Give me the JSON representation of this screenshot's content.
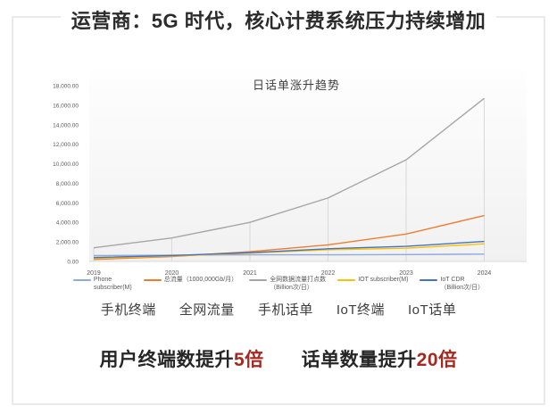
{
  "slide_title": "运营商：5G 时代，核心计费系统压力持续增加",
  "chart_data": {
    "type": "line",
    "title": "日话单涨升趋势",
    "x": [
      "2019",
      "2020",
      "2021",
      "2022",
      "2023",
      "2024"
    ],
    "y_axis": {
      "min": 0,
      "max": 18000,
      "step": 2000,
      "tick_format": "#,##0.00"
    },
    "grid": false,
    "legend_position": "bottom",
    "drop_lines": true,
    "series": [
      {
        "name": "Phone subscriber(M)",
        "legend_lines": [
          "Phone",
          "subscriber(M)"
        ],
        "color": "#8FAADC",
        "values": [
          600,
          640,
          680,
          680,
          700,
          750
        ]
      },
      {
        "name": "总流量（1000,000Gb/月）",
        "legend_lines": [
          "总流量（1000,000Gb/月）"
        ],
        "color": "#ED7D31",
        "values": [
          200,
          500,
          1000,
          1700,
          2800,
          4700
        ]
      },
      {
        "name": "全网数据流量打点数（Billion次/日）",
        "legend_lines": [
          "全网数据流量打点数",
          "（Billion次/日）"
        ],
        "color": "#A6A6A6",
        "values": [
          1400,
          2400,
          4000,
          6500,
          10400,
          16700
        ],
        "drop_lines": true
      },
      {
        "name": "IOT subscriber(M)",
        "legend_lines": [
          "IOT subscriber(M)"
        ],
        "color": "#FFC000",
        "values": [
          300,
          550,
          850,
          1200,
          1350,
          1800
        ]
      },
      {
        "name": "IoT CDR（Billion次/日）",
        "legend_lines": [
          "IoT CDR",
          "（Billion次/日）"
        ],
        "color": "#4472C4",
        "values": [
          400,
          600,
          900,
          1300,
          1550,
          2050
        ]
      }
    ]
  },
  "category_labels": [
    "手机终端",
    "全网流量",
    "手机话单",
    "IoT终端",
    "IoT话单"
  ],
  "takeaways": [
    {
      "text": "用户终端数提升",
      "highlight": "5倍"
    },
    {
      "text": "话单数量提升",
      "highlight": "20倍"
    }
  ],
  "colors": {
    "highlight_red": "#A32A21",
    "card_border": "#EAEAEA",
    "axis_gray": "#D9D9D9",
    "tick_text": "#595959",
    "plot_bg_top": "#FEFEFE",
    "plot_bg_bottom": "#F1F1F1"
  }
}
